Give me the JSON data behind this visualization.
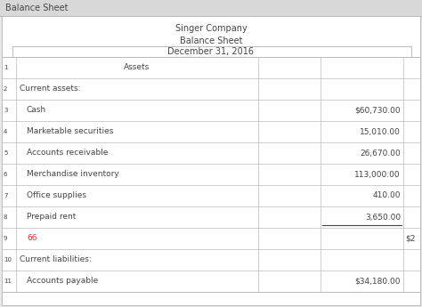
{
  "title_bar": "Balance Sheet",
  "company": "Singer Company",
  "sheet_title": "Balance Sheet",
  "date": "December 31, 2016",
  "bg_color": "#e8e8e8",
  "header_bg": "#d8d8d8",
  "white_bg": "#ffffff",
  "rows": [
    {
      "num": "1",
      "label": "Assets",
      "indent": false,
      "center_label": true,
      "col3": "",
      "highlight": false
    },
    {
      "num": "2",
      "label": "Current assets:",
      "indent": false,
      "center_label": false,
      "col3": "",
      "highlight": false
    },
    {
      "num": "3",
      "label": "Cash",
      "indent": true,
      "center_label": false,
      "col3": "$60,730.00",
      "highlight": false
    },
    {
      "num": "4",
      "label": "Marketable securities",
      "indent": true,
      "center_label": false,
      "col3": "15,010.00",
      "highlight": false
    },
    {
      "num": "5",
      "label": "Accounts receivable",
      "indent": true,
      "center_label": false,
      "col3": "26,670.00",
      "highlight": false
    },
    {
      "num": "6",
      "label": "Merchandise inventory",
      "indent": true,
      "center_label": false,
      "col3": "113,000.00",
      "highlight": false
    },
    {
      "num": "7",
      "label": "Office supplies",
      "indent": true,
      "center_label": false,
      "col3": "410.00",
      "highlight": false
    },
    {
      "num": "8",
      "label": "Prepaid rent",
      "indent": true,
      "center_label": false,
      "col3": "3,650.00",
      "highlight": false,
      "underline": true
    },
    {
      "num": "9",
      "label": "66",
      "indent": true,
      "center_label": false,
      "col3": "$2",
      "highlight": true,
      "partial": true
    },
    {
      "num": "10",
      "label": "Current liabilities:",
      "indent": false,
      "center_label": false,
      "col3": "",
      "highlight": false
    },
    {
      "num": "11",
      "label": "Accounts payable",
      "indent": true,
      "center_label": false,
      "col3": "$34,180.00",
      "highlight": false
    }
  ],
  "text_color": "#444444",
  "red_color": "#dd3333",
  "border_color": "#bbbbbb",
  "font_size": 6.5,
  "title_font_size": 7.0
}
